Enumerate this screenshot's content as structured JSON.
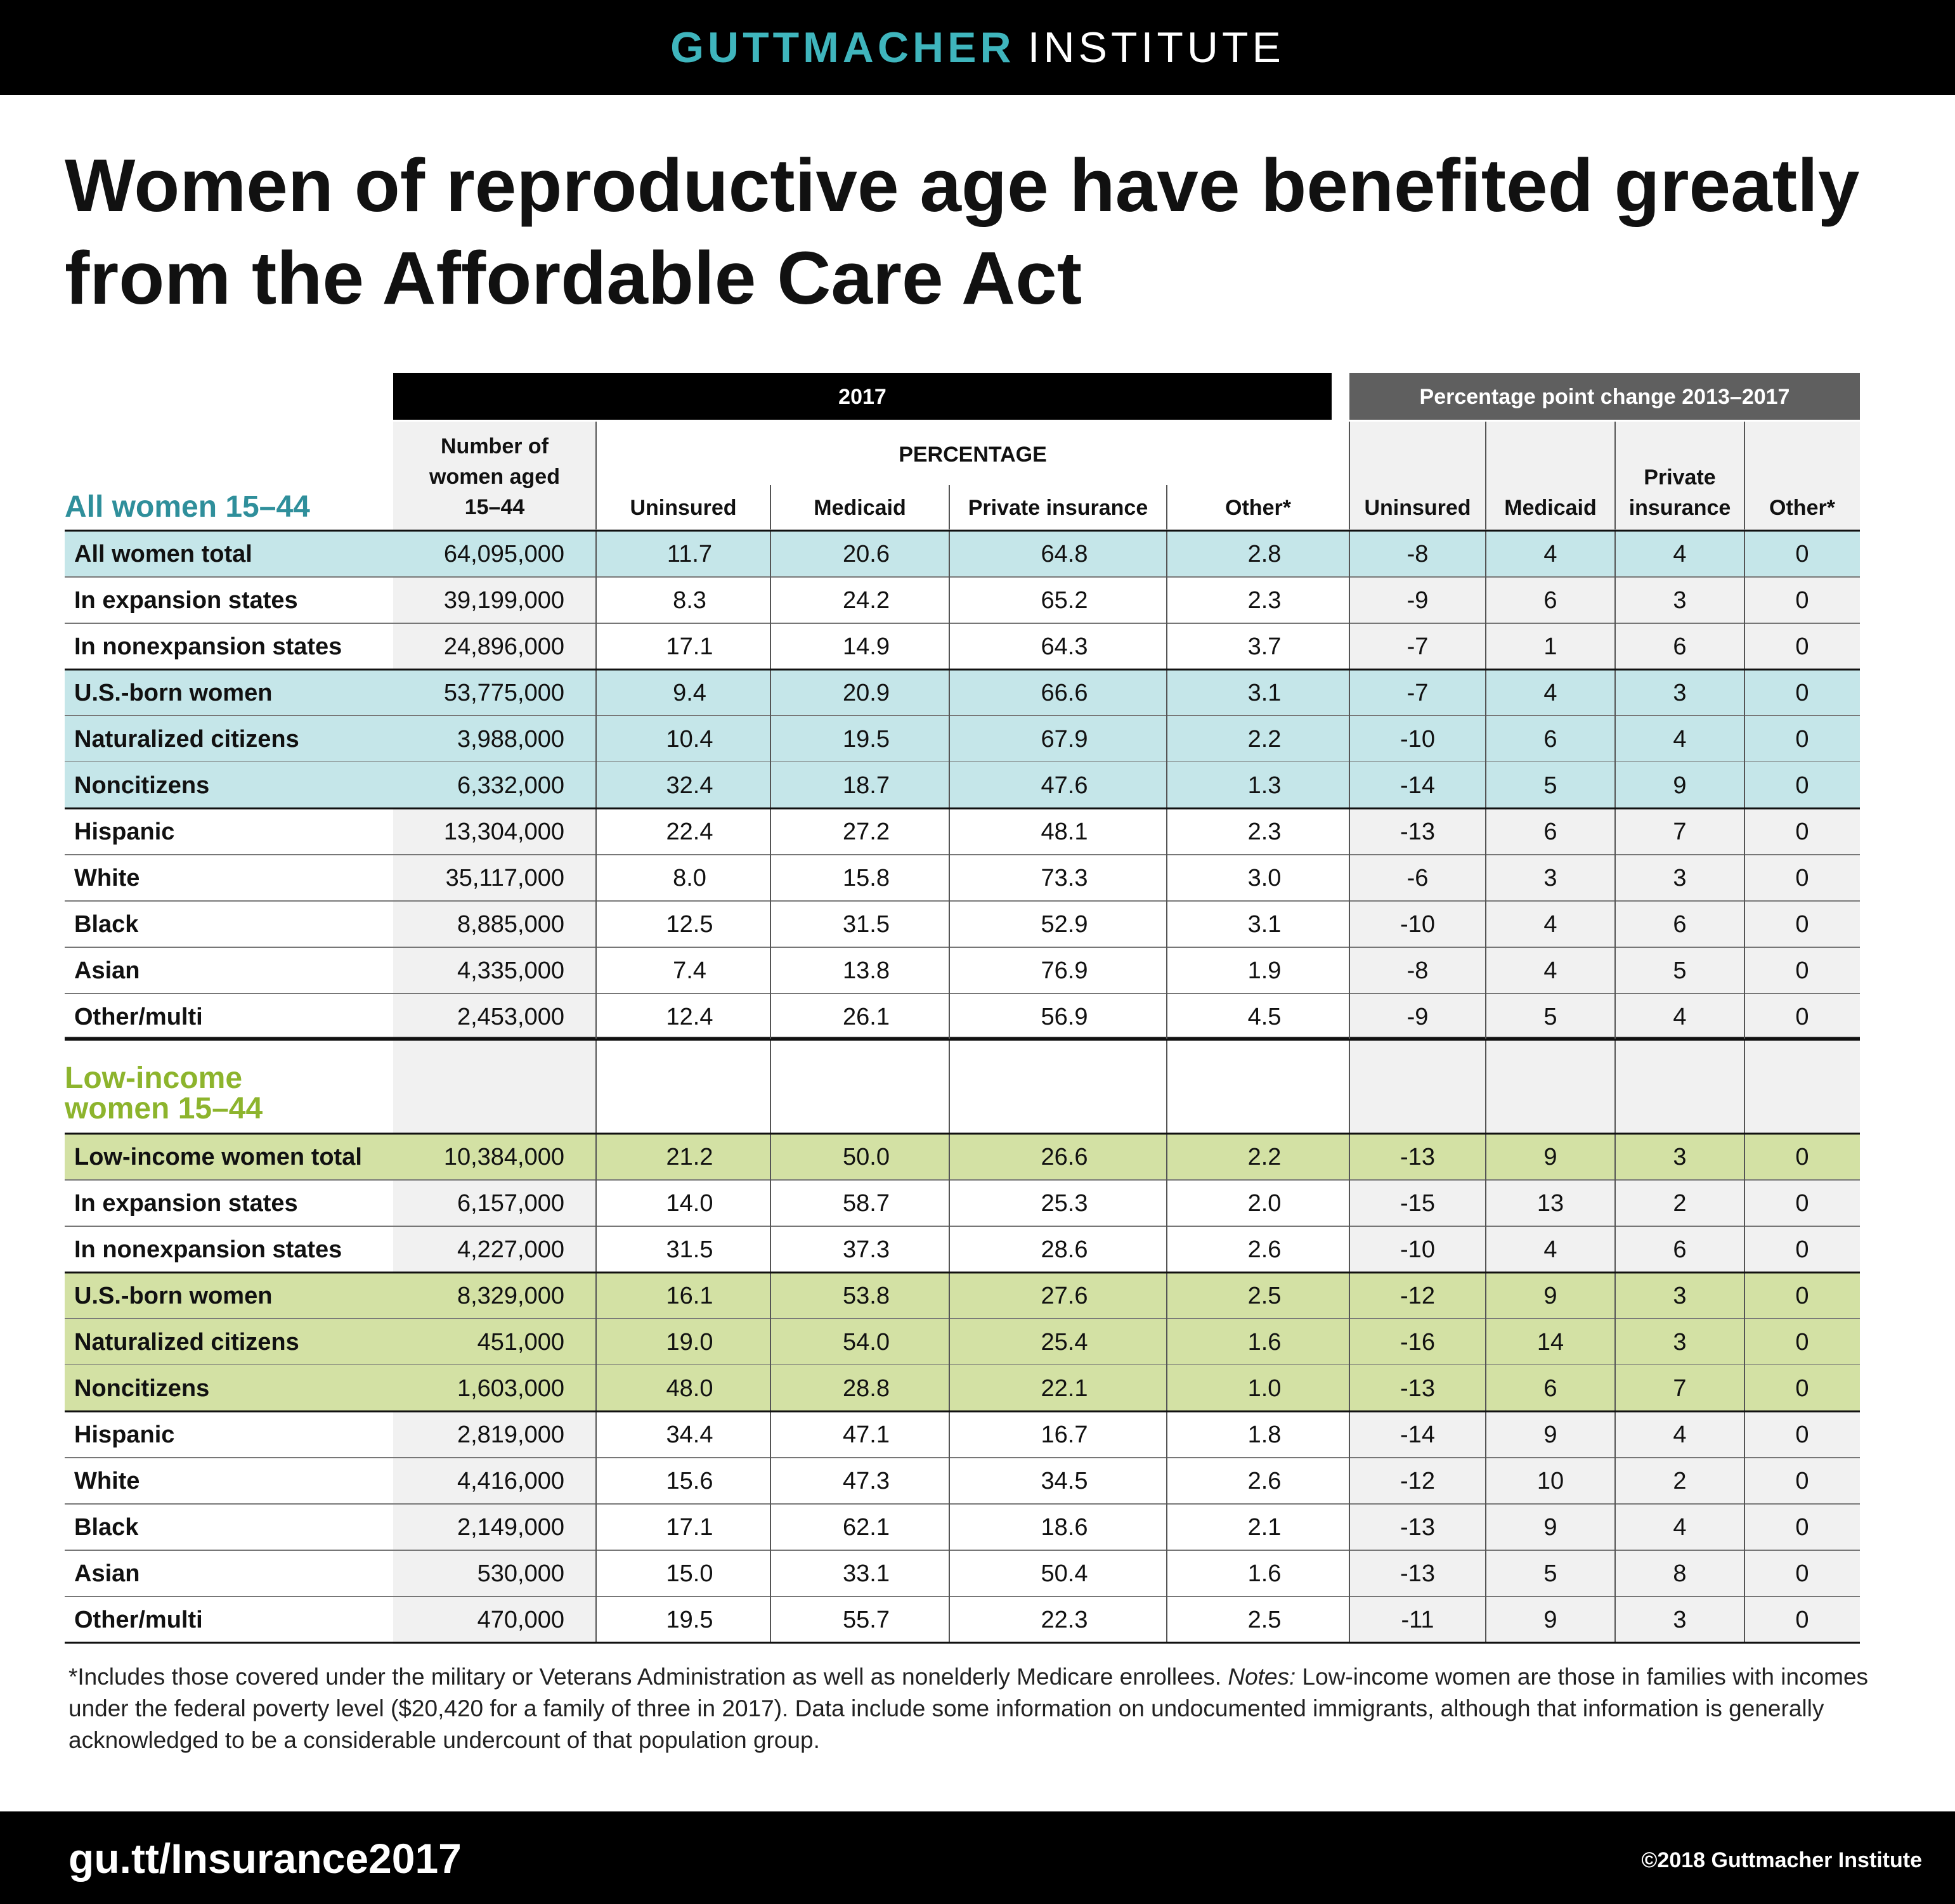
{
  "brand": {
    "part1": "GUTTMACHER",
    "part2": "INSTITUTE"
  },
  "title": "Women of reproductive age have benefited greatly from the Affordable Care Act",
  "colors": {
    "teal": "#2f8f9b",
    "teal_band": "#c5e6e9",
    "green": "#8db42d",
    "green_band": "#d3e1a4",
    "dark_header": "#000000",
    "gray_header": "#5f5f5f"
  },
  "chart_data": {
    "type": "table",
    "group_headers": {
      "year": "2017",
      "change": "Percentage point change 2013–2017",
      "percentage": "PERCENTAGE"
    },
    "column_headers": [
      "Number of women aged 15–44",
      "Uninsured",
      "Medicaid",
      "Private insurance",
      "Other*",
      "Uninsured",
      "Medicaid",
      "Private insurance",
      "Other*"
    ],
    "sections": [
      {
        "label": "All women 15–44",
        "rows": [
          {
            "label": "All women total",
            "band": true,
            "values": [
              "64,095,000",
              "11.7",
              "20.6",
              "64.8",
              "2.8",
              "-8",
              "4",
              "4",
              "0"
            ]
          },
          {
            "label": "In expansion states",
            "band": false,
            "values": [
              "39,199,000",
              "8.3",
              "24.2",
              "65.2",
              "2.3",
              "-9",
              "6",
              "3",
              "0"
            ]
          },
          {
            "label": "In nonexpansion states",
            "band": false,
            "values": [
              "24,896,000",
              "17.1",
              "14.9",
              "64.3",
              "3.7",
              "-7",
              "1",
              "6",
              "0"
            ]
          },
          {
            "label": "U.S.-born women",
            "band": true,
            "values": [
              "53,775,000",
              "9.4",
              "20.9",
              "66.6",
              "3.1",
              "-7",
              "4",
              "3",
              "0"
            ]
          },
          {
            "label": "Naturalized citizens",
            "band": true,
            "values": [
              "3,988,000",
              "10.4",
              "19.5",
              "67.9",
              "2.2",
              "-10",
              "6",
              "4",
              "0"
            ]
          },
          {
            "label": "Noncitizens",
            "band": true,
            "values": [
              "6,332,000",
              "32.4",
              "18.7",
              "47.6",
              "1.3",
              "-14",
              "5",
              "9",
              "0"
            ]
          },
          {
            "label": "Hispanic",
            "band": false,
            "values": [
              "13,304,000",
              "22.4",
              "27.2",
              "48.1",
              "2.3",
              "-13",
              "6",
              "7",
              "0"
            ]
          },
          {
            "label": "White",
            "band": false,
            "values": [
              "35,117,000",
              "8.0",
              "15.8",
              "73.3",
              "3.0",
              "-6",
              "3",
              "3",
              "0"
            ]
          },
          {
            "label": "Black",
            "band": false,
            "values": [
              "8,885,000",
              "12.5",
              "31.5",
              "52.9",
              "3.1",
              "-10",
              "4",
              "6",
              "0"
            ]
          },
          {
            "label": "Asian",
            "band": false,
            "values": [
              "4,335,000",
              "7.4",
              "13.8",
              "76.9",
              "1.9",
              "-8",
              "4",
              "5",
              "0"
            ]
          },
          {
            "label": "Other/multi",
            "band": false,
            "values": [
              "2,453,000",
              "12.4",
              "26.1",
              "56.9",
              "4.5",
              "-9",
              "5",
              "4",
              "0"
            ]
          }
        ]
      },
      {
        "label": "Low-income women 15–44",
        "rows": [
          {
            "label": "Low-income women total",
            "band": true,
            "values": [
              "10,384,000",
              "21.2",
              "50.0",
              "26.6",
              "2.2",
              "-13",
              "9",
              "3",
              "0"
            ]
          },
          {
            "label": "In expansion states",
            "band": false,
            "values": [
              "6,157,000",
              "14.0",
              "58.7",
              "25.3",
              "2.0",
              "-15",
              "13",
              "2",
              "0"
            ]
          },
          {
            "label": "In nonexpansion states",
            "band": false,
            "values": [
              "4,227,000",
              "31.5",
              "37.3",
              "28.6",
              "2.6",
              "-10",
              "4",
              "6",
              "0"
            ]
          },
          {
            "label": "U.S.-born women",
            "band": true,
            "values": [
              "8,329,000",
              "16.1",
              "53.8",
              "27.6",
              "2.5",
              "-12",
              "9",
              "3",
              "0"
            ]
          },
          {
            "label": "Naturalized citizens",
            "band": true,
            "values": [
              "451,000",
              "19.0",
              "54.0",
              "25.4",
              "1.6",
              "-16",
              "14",
              "3",
              "0"
            ]
          },
          {
            "label": "Noncitizens",
            "band": true,
            "values": [
              "1,603,000",
              "48.0",
              "28.8",
              "22.1",
              "1.0",
              "-13",
              "6",
              "7",
              "0"
            ]
          },
          {
            "label": "Hispanic",
            "band": false,
            "values": [
              "2,819,000",
              "34.4",
              "47.1",
              "16.7",
              "1.8",
              "-14",
              "9",
              "4",
              "0"
            ]
          },
          {
            "label": "White",
            "band": false,
            "values": [
              "4,416,000",
              "15.6",
              "47.3",
              "34.5",
              "2.6",
              "-12",
              "10",
              "2",
              "0"
            ]
          },
          {
            "label": "Black",
            "band": false,
            "values": [
              "2,149,000",
              "17.1",
              "62.1",
              "18.6",
              "2.1",
              "-13",
              "9",
              "4",
              "0"
            ]
          },
          {
            "label": "Asian",
            "band": false,
            "values": [
              "530,000",
              "15.0",
              "33.1",
              "50.4",
              "1.6",
              "-13",
              "5",
              "8",
              "0"
            ]
          },
          {
            "label": "Other/multi",
            "band": false,
            "values": [
              "470,000",
              "19.5",
              "55.7",
              "22.3",
              "2.5",
              "-11",
              "9",
              "3",
              "0"
            ]
          }
        ]
      }
    ]
  },
  "footnote": {
    "part1": "*Includes those covered under the military or Veterans Administration as well as nonelderly Medicare enrollees. ",
    "notes_label": "Notes:",
    "part2": " Low-income women are those in families with incomes under the federal poverty level ($20,420 for a family of three in 2017). Data include some information on undocumented immigrants, although that information is generally acknowledged to be a considerable undercount of that population group."
  },
  "footer": {
    "url": "gu.tt/Insurance2017",
    "copyright": "©2018 Guttmacher Institute"
  }
}
